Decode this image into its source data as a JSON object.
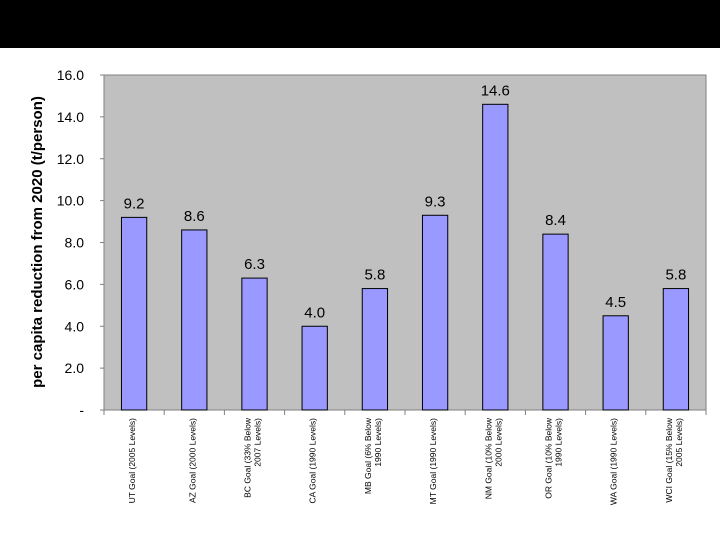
{
  "chart_data": {
    "type": "bar",
    "ylabel": "per capita reduction from 2020 (t/person)",
    "xlabel": "",
    "ylim": [
      0,
      16
    ],
    "yticks": [
      "-",
      "2.0",
      "4.0",
      "6.0",
      "8.0",
      "10.0",
      "12.0",
      "14.0",
      "16.0"
    ],
    "grid": false,
    "legend": "none",
    "categories": [
      [
        "UT Goal (2005 Levels)"
      ],
      [
        "AZ Goal (2000 Levels)"
      ],
      [
        "BC Goal (33% Below",
        "2007 Levels)"
      ],
      [
        "CA Goal (1990 Levels)"
      ],
      [
        "MB Goal (6% Below",
        "1990 Levels)"
      ],
      [
        "MT Goal (1990 Levels)"
      ],
      [
        "NM Goal (10% Below",
        "2000 Levels)"
      ],
      [
        "OR Goal (10% Below",
        "1990 Levels)"
      ],
      [
        "WA Goal (1990 Levels)"
      ],
      [
        "WCI Goal (15% Below",
        "2005 Levels)"
      ]
    ],
    "values": [
      9.2,
      8.6,
      6.3,
      4.0,
      5.8,
      9.3,
      14.6,
      8.4,
      4.5,
      5.8
    ],
    "value_labels": [
      "9.2",
      "8.6",
      "6.3",
      "4.0",
      "5.8",
      "9.3",
      "14.6",
      "8.4",
      "4.5",
      "5.8"
    ],
    "colors": {
      "plot_area": "#c0c0c0",
      "bar_fill": "#9999ff",
      "bar_stroke": "#000000",
      "header_band": "#000000"
    }
  }
}
